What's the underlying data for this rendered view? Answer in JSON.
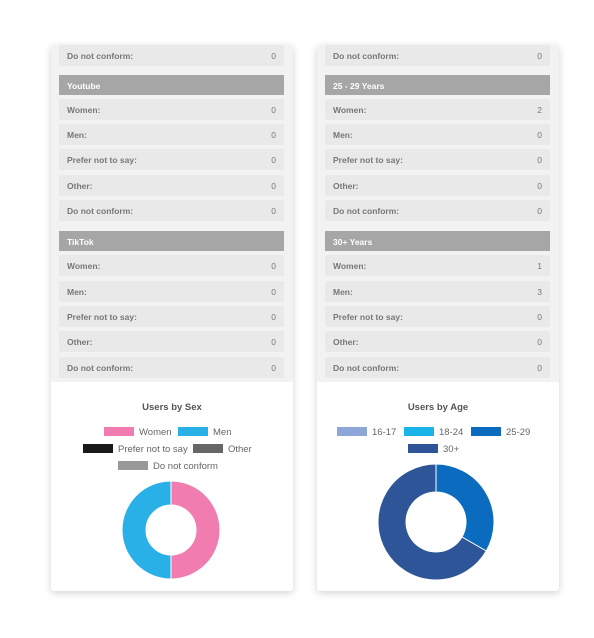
{
  "left_panel": {
    "top_row": {
      "label": "Do not conform:",
      "value": "0"
    },
    "sections": [
      {
        "title": "Youtube",
        "rows": [
          {
            "label": "Women:",
            "value": "0"
          },
          {
            "label": "Men:",
            "value": "0"
          },
          {
            "label": "Prefer not to say:",
            "value": "0"
          },
          {
            "label": "Other:",
            "value": "0"
          },
          {
            "label": "Do not conform:",
            "value": "0"
          }
        ]
      },
      {
        "title": "TikTok",
        "rows": [
          {
            "label": "Women:",
            "value": "0"
          },
          {
            "label": "Men:",
            "value": "0"
          },
          {
            "label": "Prefer not to say:",
            "value": "0"
          },
          {
            "label": "Other:",
            "value": "0"
          },
          {
            "label": "Do not conform:",
            "value": "0"
          }
        ]
      }
    ]
  },
  "right_panel": {
    "top_row": {
      "label": "Do not conform:",
      "value": "0"
    },
    "sections": [
      {
        "title": "25 - 29 Years",
        "rows": [
          {
            "label": "Women:",
            "value": "2"
          },
          {
            "label": "Men:",
            "value": "0"
          },
          {
            "label": "Prefer not to say:",
            "value": "0"
          },
          {
            "label": "Other:",
            "value": "0"
          },
          {
            "label": "Do not conform:",
            "value": "0"
          }
        ]
      },
      {
        "title": "30+ Years",
        "rows": [
          {
            "label": "Women:",
            "value": "1"
          },
          {
            "label": "Men:",
            "value": "3"
          },
          {
            "label": "Prefer not to say:",
            "value": "0"
          },
          {
            "label": "Other:",
            "value": "0"
          },
          {
            "label": "Do not conform:",
            "value": "0"
          }
        ]
      }
    ]
  },
  "chart_data": [
    {
      "type": "pie",
      "title": "Users by Sex",
      "categories": [
        "Women",
        "Men",
        "Prefer not to say",
        "Other",
        "Do not conform"
      ],
      "values": [
        50,
        50,
        0,
        0,
        0
      ],
      "colors": [
        "#f07cb0",
        "#29b0e6",
        "#1a1a1a",
        "#666666",
        "#999999"
      ]
    },
    {
      "type": "pie",
      "title": "Users by Age",
      "categories": [
        "16-17",
        "18-24",
        "25-29",
        "30+"
      ],
      "values": [
        0,
        0,
        2,
        4
      ],
      "colors": [
        "#8fa6d8",
        "#1ab4e8",
        "#0a6bbf",
        "#2e5597"
      ]
    }
  ]
}
